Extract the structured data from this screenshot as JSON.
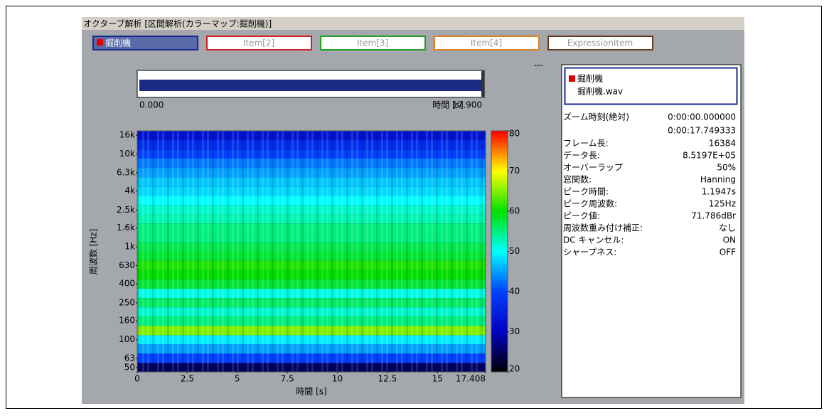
{
  "window_title": "オクターブ解析 [区間解析(カラーマップ:掘削機)]",
  "tabs": [
    {
      "label": "掘削機",
      "color": "#1a2a8c",
      "selected": true
    },
    {
      "label": "Item[2]",
      "color": "#d02020",
      "selected": false
    },
    {
      "label": "Item[3]",
      "color": "#20a020",
      "selected": false
    },
    {
      "label": "Item[4]",
      "color": "#e08020",
      "selected": false
    },
    {
      "label": "ExpressionItem",
      "color": "#6a3a20",
      "selected": false
    }
  ],
  "marker": "---",
  "overview": {
    "xlabel": "時間 [s]",
    "xlim": [
      0,
      17.9
    ],
    "xticks": [
      {
        "value": 0,
        "label": "0.000"
      },
      {
        "value": 17.9,
        "label": "17.900"
      }
    ]
  },
  "chart_data": {
    "type": "heatmap",
    "xlabel": "時間 [s]",
    "ylabel": "周波数 [Hz]",
    "xlim": [
      0,
      17.408
    ],
    "xticks": [
      0,
      2.5,
      5,
      7.5,
      10,
      12.5,
      15,
      17.408
    ],
    "ylim": [
      45,
      17800
    ],
    "log_y": true,
    "yticks": [
      50,
      63,
      100,
      160,
      250,
      400,
      630,
      {
        "value": 1000,
        "label": "1k"
      },
      {
        "value": 1600,
        "label": "1.6k"
      },
      {
        "value": 2500,
        "label": "2.5k"
      },
      {
        "value": 4000,
        "label": "4k"
      },
      {
        "value": 6300,
        "label": "6.3k"
      },
      {
        "value": 10000,
        "label": "10k"
      },
      {
        "value": 16000,
        "label": "16k"
      }
    ],
    "y": [
      50,
      63,
      80,
      100,
      125,
      160,
      200,
      250,
      315,
      400,
      500,
      630,
      800,
      1000,
      1250,
      1600,
      2000,
      2500,
      3150,
      4000,
      5000,
      6300,
      8000,
      10000,
      12500,
      16000
    ],
    "values": [
      25,
      40,
      45,
      49,
      65,
      55,
      52,
      56,
      51,
      58,
      60,
      61,
      58,
      57,
      55,
      55,
      53,
      52,
      50,
      48,
      47,
      45,
      43,
      40,
      37,
      33
    ],
    "zlim": [
      20,
      80
    ],
    "zticks": [
      20,
      30,
      40,
      50,
      60,
      70,
      80
    ],
    "colormap": [
      "#000000",
      "#0000c0",
      "#0040ff",
      "#00ffff",
      "#00e000",
      "#ffff00",
      "#ff0000"
    ]
  },
  "info": {
    "item": "掘削機",
    "file": "掘削機.wav",
    "zoom": {
      "label": "ズーム時刻(絶対)",
      "values": [
        "0:00:00.000000",
        "0:00:17.749333"
      ]
    },
    "rows": [
      [
        "フレーム長:",
        "16384"
      ],
      [
        "データ長:",
        "8.5197E+05"
      ],
      [
        "オーバーラップ",
        "50%"
      ],
      [
        "窓関数:",
        "Hanning"
      ],
      [
        "ピーク時間:",
        "1.1947s"
      ],
      [
        "ピーク周波数:",
        "125Hz"
      ],
      [
        "ピーク値:",
        "71.786dBr"
      ],
      [
        "周波数重み付け補正:",
        "なし"
      ],
      [
        "DC キャンセル:",
        "ON"
      ],
      [
        "シャープネス:",
        "OFF"
      ]
    ]
  }
}
